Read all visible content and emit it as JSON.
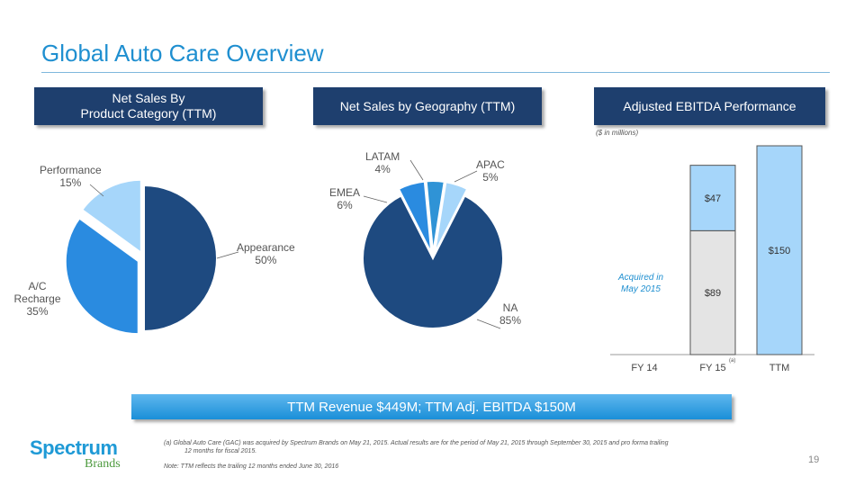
{
  "page_title": "Global Auto Care Overview",
  "headers": {
    "product_line1": "Net Sales By",
    "product_line2": "Product Category (TTM)",
    "geography": "Net Sales by Geography (TTM)",
    "ebitda": "Adjusted EBITDA Performance"
  },
  "units_note": "($ in millions)",
  "acquired_note_line1": "Acquired in",
  "acquired_note_line2": "May 2015",
  "fy15_superscript": "(a)",
  "banner": "TTM Revenue  $449M; TTM Adj. EBITDA $150M",
  "footnote_a": "(a)      Global Auto Care (GAC) was acquired by Spectrum Brands on May 21, 2015. Actual results are for the period of May 21, 2015 through September  30, 2015 and pro forma trailing",
  "footnote_a2": "12 months  for fiscal 2015.",
  "footnote_note": "Note: TTM reflects the trailing 12 months  ended June 30, 2016",
  "page_number": "19",
  "logo": {
    "word1": "Spectrum",
    "word2": "Brands"
  },
  "colors": {
    "title": "#1f8fd0",
    "header": "#1e3f6e",
    "dark_blue": "#1e4a80",
    "mid_blue": "#2a8be0",
    "light_blue": "#a6d6fa",
    "gray": "#e4e4e4"
  },
  "chart_data": [
    {
      "type": "pie",
      "labels": [
        "Appearance",
        "A/C Recharge",
        "Performance"
      ],
      "values": [
        50,
        35,
        15
      ],
      "value_labels": [
        "50%",
        "35%",
        "15%"
      ],
      "exploded": true
    },
    {
      "type": "pie",
      "labels": [
        "NA",
        "EMEA",
        "LATAM",
        "APAC"
      ],
      "values": [
        85,
        6,
        4,
        5
      ],
      "value_labels": [
        "85%",
        "6%",
        "4%",
        "5%"
      ],
      "exploded": true
    },
    {
      "type": "bar",
      "stacked": true,
      "categories": [
        "FY 14",
        "FY 15",
        "TTM"
      ],
      "series": [
        {
          "values": [
            0,
            89,
            0
          ],
          "labels": [
            "",
            "$89",
            ""
          ]
        },
        {
          "values": [
            0,
            47,
            150
          ],
          "labels": [
            "",
            "$47",
            "$150"
          ]
        }
      ]
    }
  ]
}
